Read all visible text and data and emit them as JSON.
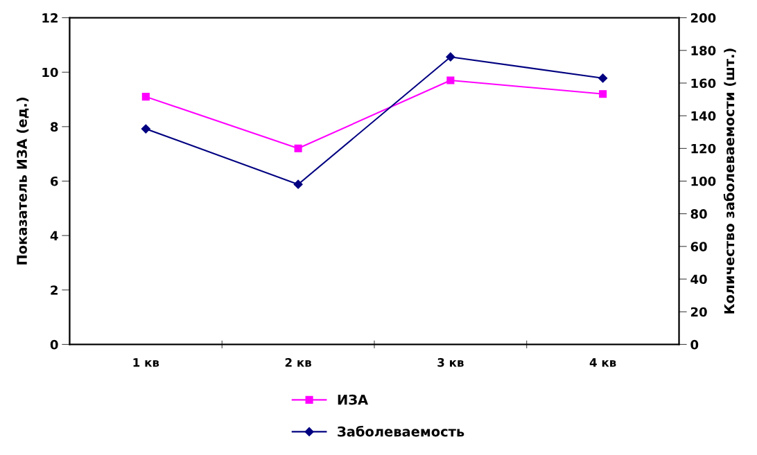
{
  "chart_data": {
    "type": "line",
    "categories": [
      "1 кв",
      "2 кв",
      "3 кв",
      "4 кв"
    ],
    "ylabel": "Показатель ИЗА (ед.)",
    "y2label": "Количество заболеваемости (шт.)",
    "series": [
      {
        "name": "ИЗА",
        "color": "#ff00ff",
        "values": [
          9.1,
          7.2,
          9.7,
          9.2
        ],
        "marker": "square"
      },
      {
        "name": "Заболеваемость",
        "color": "#000080",
        "values": [
          132,
          98,
          176,
          163
        ],
        "marker": "diamond",
        "axis": "y2"
      }
    ],
    "ylim": [
      0,
      12
    ],
    "yticks": [
      0,
      2,
      4,
      6,
      8,
      10,
      12
    ],
    "y2lim": [
      0,
      200
    ],
    "y2ticks": [
      0,
      20,
      40,
      60,
      80,
      100,
      120,
      140,
      160,
      180,
      200
    ],
    "grid": false,
    "legend": "bottom"
  }
}
